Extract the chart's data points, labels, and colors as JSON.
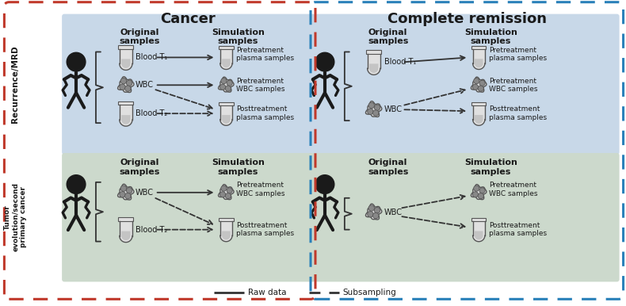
{
  "fig_width": 7.9,
  "fig_height": 3.86,
  "dpi": 100,
  "bg_color": "#ffffff",
  "cancer_border_color": "#c0392b",
  "remission_border_color": "#2980b9",
  "top_panel_bg": "#c8d8e8",
  "bottom_panel_bg": "#ccd9cc",
  "cancer_title": "Cancer",
  "remission_title": "Complete remission",
  "row1_label": "Recurrence/MRD",
  "row2_label": "Tumor\nevolution/second\nprimary cancer",
  "legend_raw": "Raw data",
  "legend_sub": "Subsampling"
}
